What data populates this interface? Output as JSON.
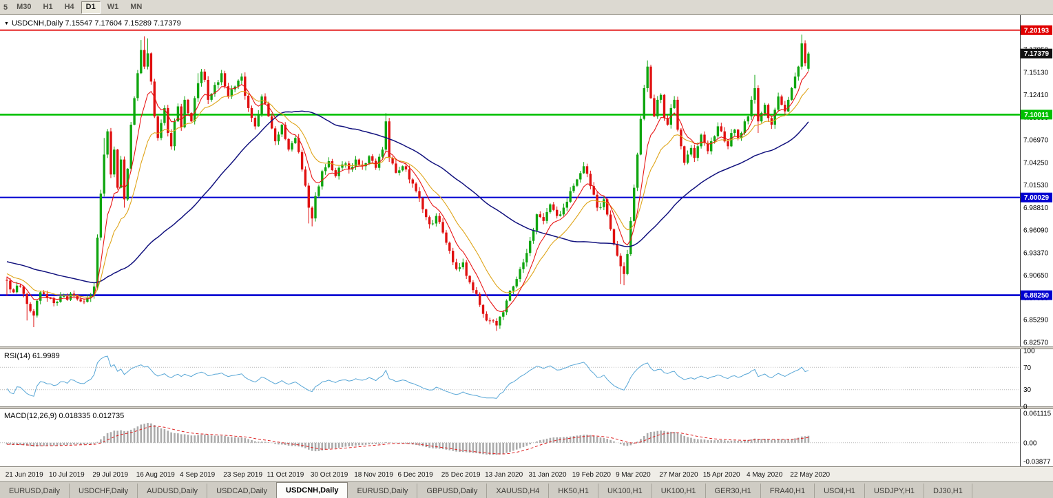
{
  "toolbar": {
    "clipped_label": "5",
    "timeframes": [
      "M30",
      "H1",
      "H4",
      "D1",
      "W1",
      "MN"
    ],
    "active": "D1"
  },
  "tabs": {
    "items": [
      "EURUSD,Daily",
      "USDCHF,Daily",
      "AUDUSD,Daily",
      "USDCAD,Daily",
      "USDCNH,Daily",
      "EURUSD,Daily",
      "GBPUSD,Daily",
      "XAUUSD,H4",
      "HK50,H1",
      "UK100,H1",
      "UK100,H1",
      "GER30,H1",
      "FRA40,H1",
      "USOil,H1",
      "USDJPY,H1",
      "DJ30,H1"
    ],
    "active": "USDCNH,Daily"
  },
  "chart_data": {
    "type": "candlestick",
    "title": "USDCNH,Daily",
    "header_text": "USDCNH,Daily 7.15547 7.17604 7.15289 7.17379",
    "ohlc": {
      "open": 7.15547,
      "high": 7.17604,
      "low": 7.15289,
      "close": 7.17379
    },
    "price_axis": {
      "ref_value": 7.1785,
      "ticks": [
        "7.17850",
        "7.15130",
        "7.12410",
        "7.09690",
        "7.06970",
        "7.04250",
        "7.01530",
        "6.98810",
        "6.96090",
        "6.93370",
        "6.90650",
        "6.87930",
        "6.85290",
        "6.82570"
      ]
    },
    "levels": [
      {
        "value": 7.20193,
        "label": "7.20193",
        "color": "#e00000",
        "width": 1.8
      },
      {
        "value": 7.10011,
        "label": "7.10011",
        "color": "#00c000",
        "width": 2.6
      },
      {
        "value": 7.00029,
        "label": "7.00029",
        "color": "#0000d0",
        "width": 2.0
      },
      {
        "value": 6.8825,
        "label": "6.88250",
        "color": "#0000d0",
        "width": 2.6
      }
    ],
    "current_price": {
      "value": 7.17379,
      "label": "7.17379",
      "color": "#111111"
    },
    "x_axis_dates": [
      "21 Jun 2019",
      "10 Jul 2019",
      "29 Jul 2019",
      "16 Aug 2019",
      "4 Sep 2019",
      "23 Sep 2019",
      "11 Oct 2019",
      "30 Oct 2019",
      "18 Nov 2019",
      "6 Dec 2019",
      "25 Dec 2019",
      "13 Jan 2020",
      "31 Jan 2020",
      "19 Feb 2020",
      "9 Mar 2020",
      "27 Mar 2020",
      "15 Apr 2020",
      "4 May 2020",
      "22 May 2020"
    ],
    "first_label_bar": 2,
    "label_every": 13,
    "visible_bars": 240,
    "prehistory_bars": 60,
    "seed": 20200522,
    "anchors": [
      [
        0,
        6.9
      ],
      [
        2,
        6.886
      ],
      [
        4,
        6.893
      ],
      [
        6,
        6.872
      ],
      [
        8,
        6.858
      ],
      [
        10,
        6.886
      ],
      [
        12,
        6.879
      ],
      [
        14,
        6.873
      ],
      [
        16,
        6.881
      ],
      [
        18,
        6.877
      ],
      [
        20,
        6.883
      ],
      [
        22,
        6.875
      ],
      [
        24,
        6.879
      ],
      [
        26,
        6.893
      ],
      [
        27,
        6.952
      ],
      [
        28,
        7.005
      ],
      [
        29,
        7.052
      ],
      [
        30,
        7.08
      ],
      [
        31,
        7.028
      ],
      [
        32,
        7.058
      ],
      [
        33,
        7.012
      ],
      [
        34,
        7.046
      ],
      [
        35,
        6.998
      ],
      [
        36,
        7.035
      ],
      [
        37,
        7.088
      ],
      [
        38,
        7.12
      ],
      [
        39,
        7.15
      ],
      [
        40,
        7.178
      ],
      [
        41,
        7.158
      ],
      [
        42,
        7.174
      ],
      [
        43,
        7.14
      ],
      [
        44,
        7.098
      ],
      [
        45,
        7.072
      ],
      [
        46,
        7.09
      ],
      [
        47,
        7.108
      ],
      [
        48,
        7.078
      ],
      [
        49,
        7.062
      ],
      [
        50,
        7.092
      ],
      [
        51,
        7.11
      ],
      [
        52,
        7.085
      ],
      [
        53,
        7.118
      ],
      [
        54,
        7.102
      ],
      [
        55,
        7.092
      ],
      [
        56,
        7.12
      ],
      [
        57,
        7.138
      ],
      [
        58,
        7.152
      ],
      [
        59,
        7.142
      ],
      [
        60,
        7.118
      ],
      [
        62,
        7.136
      ],
      [
        64,
        7.15
      ],
      [
        66,
        7.122
      ],
      [
        68,
        7.134
      ],
      [
        70,
        7.146
      ],
      [
        72,
        7.108
      ],
      [
        74,
        7.086
      ],
      [
        76,
        7.122
      ],
      [
        78,
        7.098
      ],
      [
        80,
        7.068
      ],
      [
        82,
        7.088
      ],
      [
        84,
        7.058
      ],
      [
        86,
        7.072
      ],
      [
        88,
        7.034
      ],
      [
        90,
        6.988
      ],
      [
        91,
        6.975
      ],
      [
        92,
        7.002
      ],
      [
        94,
        7.032
      ],
      [
        96,
        7.044
      ],
      [
        98,
        7.026
      ],
      [
        100,
        7.04
      ],
      [
        102,
        7.034
      ],
      [
        104,
        7.046
      ],
      [
        106,
        7.038
      ],
      [
        108,
        7.05
      ],
      [
        110,
        7.036
      ],
      [
        112,
        7.058
      ],
      [
        113,
        7.092
      ],
      [
        114,
        7.048
      ],
      [
        116,
        7.03
      ],
      [
        118,
        7.038
      ],
      [
        120,
        7.022
      ],
      [
        122,
        7.008
      ],
      [
        124,
        6.986
      ],
      [
        126,
        6.968
      ],
      [
        128,
        6.978
      ],
      [
        130,
        6.958
      ],
      [
        132,
        6.936
      ],
      [
        134,
        6.914
      ],
      [
        136,
        6.922
      ],
      [
        138,
        6.898
      ],
      [
        140,
        6.884
      ],
      [
        142,
        6.86
      ],
      [
        144,
        6.852
      ],
      [
        146,
        6.846
      ],
      [
        148,
        6.862
      ],
      [
        150,
        6.888
      ],
      [
        152,
        6.902
      ],
      [
        154,
        6.922
      ],
      [
        156,
        6.948
      ],
      [
        158,
        6.98
      ],
      [
        160,
        6.972
      ],
      [
        162,
        6.992
      ],
      [
        164,
        6.978
      ],
      [
        166,
        6.988
      ],
      [
        168,
        7.008
      ],
      [
        170,
        7.022
      ],
      [
        172,
        7.038
      ],
      [
        174,
        7.014
      ],
      [
        176,
        6.988
      ],
      [
        178,
        6.998
      ],
      [
        180,
        6.962
      ],
      [
        182,
        6.93
      ],
      [
        184,
        6.908
      ],
      [
        185,
        6.932
      ],
      [
        186,
        6.972
      ],
      [
        187,
        7.012
      ],
      [
        188,
        7.052
      ],
      [
        189,
        7.095
      ],
      [
        190,
        7.132
      ],
      [
        191,
        7.158
      ],
      [
        192,
        7.12
      ],
      [
        193,
        7.098
      ],
      [
        194,
        7.118
      ],
      [
        195,
        7.124
      ],
      [
        196,
        7.096
      ],
      [
        197,
        7.088
      ],
      [
        198,
        7.108
      ],
      [
        199,
        7.118
      ],
      [
        200,
        7.082
      ],
      [
        201,
        7.062
      ],
      [
        202,
        7.042
      ],
      [
        203,
        7.052
      ],
      [
        204,
        7.06
      ],
      [
        205,
        7.048
      ],
      [
        206,
        7.062
      ],
      [
        207,
        7.076
      ],
      [
        208,
        7.066
      ],
      [
        209,
        7.056
      ],
      [
        210,
        7.068
      ],
      [
        211,
        7.074
      ],
      [
        212,
        7.086
      ],
      [
        213,
        7.08
      ],
      [
        214,
        7.068
      ],
      [
        215,
        7.062
      ],
      [
        216,
        7.078
      ],
      [
        217,
        7.082
      ],
      [
        218,
        7.072
      ],
      [
        219,
        7.078
      ],
      [
        220,
        7.092
      ],
      [
        221,
        7.098
      ],
      [
        222,
        7.118
      ],
      [
        223,
        7.132
      ],
      [
        224,
        7.092
      ],
      [
        225,
        7.102
      ],
      [
        226,
        7.112
      ],
      [
        227,
        7.096
      ],
      [
        228,
        7.088
      ],
      [
        229,
        7.106
      ],
      [
        230,
        7.122
      ],
      [
        231,
        7.112
      ],
      [
        232,
        7.104
      ],
      [
        233,
        7.118
      ],
      [
        234,
        7.132
      ],
      [
        235,
        7.146
      ],
      [
        236,
        7.158
      ],
      [
        237,
        7.186
      ],
      [
        238,
        7.162
      ],
      [
        239,
        7.17379
      ]
    ],
    "wick_high_overrides": [
      [
        29,
        7.072
      ],
      [
        40,
        7.19
      ],
      [
        41,
        7.1945
      ],
      [
        42,
        7.192
      ],
      [
        57,
        7.15
      ],
      [
        113,
        7.102
      ],
      [
        191,
        7.1655
      ],
      [
        223,
        7.148
      ],
      [
        237,
        7.1965
      ]
    ],
    "wick_low_overrides": [
      [
        0,
        6.882
      ],
      [
        6,
        6.852
      ],
      [
        8,
        6.844
      ],
      [
        35,
        6.988
      ],
      [
        90,
        6.969
      ],
      [
        91,
        6.9655
      ],
      [
        146,
        6.8395
      ],
      [
        147,
        6.842
      ],
      [
        183,
        6.896
      ],
      [
        184,
        6.8945
      ],
      [
        224,
        7.078
      ]
    ],
    "last_candle": [
      7.15547,
      7.17604,
      7.15289,
      7.17379
    ],
    "moving_averages": [
      {
        "name": "ma-fast",
        "period": 8,
        "type": "ema",
        "color": "#e81515",
        "width": 1.1
      },
      {
        "name": "ma-mid",
        "period": 17,
        "type": "ema",
        "color": "#dfa418",
        "width": 1.1
      },
      {
        "name": "ma-slow",
        "period": 55,
        "type": "sma",
        "color": "#12127e",
        "width": 1.5
      }
    ],
    "indicators": {
      "rsi": {
        "label": "RSI(14) 61.9989",
        "period": 14,
        "current": 61.9989,
        "levels": [
          70,
          30
        ],
        "scale_labels": [
          [
            "100",
            100
          ],
          [
            "70",
            70
          ],
          [
            "30",
            30
          ],
          [
            "0",
            0
          ]
        ],
        "color": "#57a6d6"
      },
      "macd": {
        "label": "MACD(12,26,9) 0.018335 0.012735",
        "fast": 12,
        "slow": 26,
        "signal": 9,
        "main_value": 0.018335,
        "signal_value": 0.012735,
        "scale_top": {
          "value": 0.061115,
          "label": "0.061115"
        },
        "scale_zero": {
          "value": 0,
          "label": "0.00"
        },
        "scale_bottom": {
          "value": -0.03877,
          "label": "-0.03877"
        },
        "hist_color": "#ababab",
        "signal_color": "#dd2020"
      }
    },
    "colors": {
      "up": "#0fa50f",
      "down": "#e01010",
      "background": "#ffffff"
    }
  }
}
